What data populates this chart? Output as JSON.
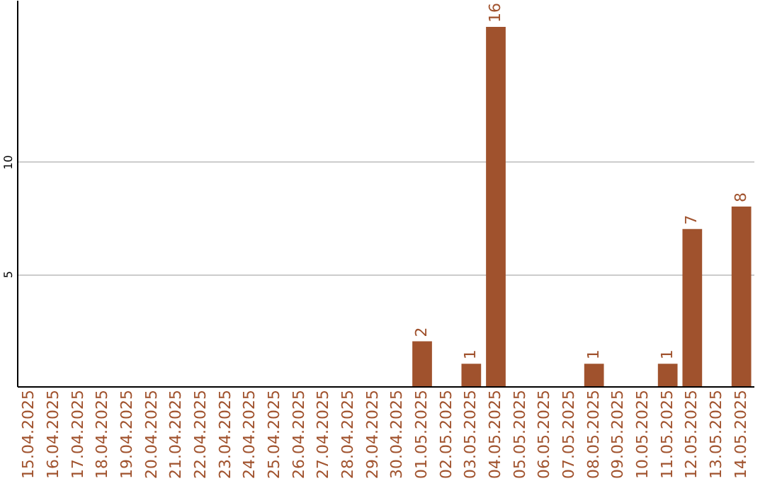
{
  "chart_data": {
    "type": "bar",
    "categories": [
      "15.04.2025",
      "16.04.2025",
      "17.04.2025",
      "18.04.2025",
      "19.04.2025",
      "20.04.2025",
      "21.04.2025",
      "22.04.2025",
      "23.04.2025",
      "24.04.2025",
      "25.04.2025",
      "26.04.2025",
      "27.04.2025",
      "28.04.2025",
      "29.04.2025",
      "30.04.2025",
      "01.05.2025",
      "02.05.2025",
      "03.05.2025",
      "04.05.2025",
      "05.05.2025",
      "06.05.2025",
      "07.05.2025",
      "08.05.2025",
      "09.05.2025",
      "10.05.2025",
      "11.05.2025",
      "12.05.2025",
      "13.05.2025",
      "14.05.2025"
    ],
    "values": [
      0,
      0,
      0,
      0,
      0,
      0,
      0,
      0,
      0,
      0,
      0,
      0,
      0,
      0,
      0,
      0,
      2,
      0,
      1,
      16,
      0,
      0,
      0,
      1,
      0,
      0,
      1,
      7,
      0,
      8
    ],
    "value_labels": [
      null,
      null,
      null,
      null,
      null,
      null,
      null,
      null,
      null,
      null,
      null,
      null,
      null,
      null,
      null,
      null,
      "2",
      null,
      "1",
      "16",
      null,
      null,
      null,
      "1",
      null,
      null,
      "1",
      "7",
      null,
      "8"
    ],
    "color": "#a0522d",
    "ylim": [
      0,
      17.2
    ],
    "yticks": [
      5,
      10
    ],
    "grid": "y"
  }
}
